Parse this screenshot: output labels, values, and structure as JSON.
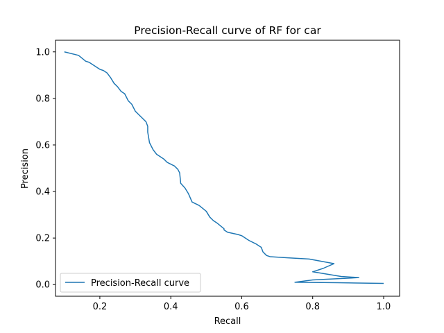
{
  "chart_data": {
    "type": "line",
    "title": "Precision-Recall curve of RF for car",
    "xlabel": "Recall",
    "ylabel": "Precision",
    "xlim": [
      0.075,
      1.045
    ],
    "ylim": [
      -0.05,
      1.05
    ],
    "xticks": [
      {
        "value": 0.2,
        "label": "0.2"
      },
      {
        "value": 0.4,
        "label": "0.4"
      },
      {
        "value": 0.6,
        "label": "0.6"
      },
      {
        "value": 0.8,
        "label": "0.8"
      },
      {
        "value": 1.0,
        "label": "1.0"
      }
    ],
    "yticks": [
      {
        "value": 0.0,
        "label": "0.0"
      },
      {
        "value": 0.2,
        "label": "0.2"
      },
      {
        "value": 0.4,
        "label": "0.4"
      },
      {
        "value": 0.6,
        "label": "0.6"
      },
      {
        "value": 0.8,
        "label": "0.8"
      },
      {
        "value": 1.0,
        "label": "1.0"
      }
    ],
    "grid": false,
    "legend_position": "lower-left",
    "series": [
      {
        "name": "Precision-Recall curve",
        "color": "#1f77b4",
        "x": [
          0.1,
          0.14,
          0.16,
          0.17,
          0.2,
          0.21,
          0.22,
          0.23,
          0.24,
          0.25,
          0.26,
          0.27,
          0.28,
          0.29,
          0.3,
          0.31,
          0.32,
          0.33,
          0.335,
          0.335,
          0.34,
          0.35,
          0.36,
          0.37,
          0.38,
          0.39,
          0.41,
          0.42,
          0.425,
          0.428,
          0.44,
          0.45,
          0.46,
          0.48,
          0.5,
          0.51,
          0.52,
          0.53,
          0.55,
          0.55,
          0.56,
          0.59,
          0.6,
          0.61,
          0.62,
          0.64,
          0.65,
          0.655,
          0.66,
          0.67,
          0.68,
          0.73,
          0.79,
          0.86,
          0.83,
          0.8,
          0.84,
          0.88,
          0.93,
          0.8,
          0.75,
          0.87,
          1.0
        ],
        "y": [
          1.0,
          0.985,
          0.96,
          0.955,
          0.925,
          0.92,
          0.91,
          0.89,
          0.865,
          0.85,
          0.83,
          0.82,
          0.79,
          0.775,
          0.745,
          0.73,
          0.715,
          0.7,
          0.68,
          0.655,
          0.61,
          0.58,
          0.56,
          0.55,
          0.54,
          0.525,
          0.51,
          0.495,
          0.48,
          0.435,
          0.415,
          0.39,
          0.355,
          0.34,
          0.315,
          0.29,
          0.275,
          0.265,
          0.24,
          0.235,
          0.225,
          0.215,
          0.21,
          0.2,
          0.19,
          0.175,
          0.165,
          0.16,
          0.14,
          0.125,
          0.12,
          0.115,
          0.11,
          0.09,
          0.07,
          0.055,
          0.045,
          0.035,
          0.03,
          0.02,
          0.01,
          0.008,
          0.005
        ]
      }
    ]
  }
}
